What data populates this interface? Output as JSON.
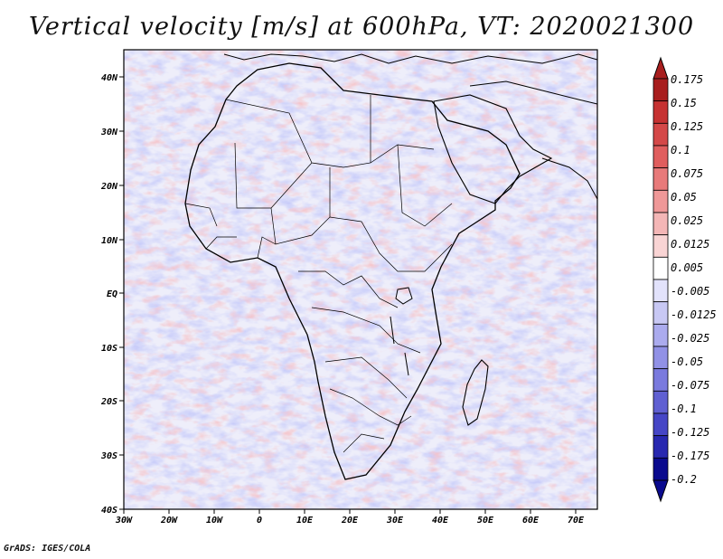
{
  "title": "Vertical velocity [m/s] at 600hPa, VT: 2020021300",
  "footer": "GrADS: IGES/COLA",
  "map": {
    "lon_labels": [
      "30W",
      "20W",
      "10W",
      "0",
      "10E",
      "20E",
      "30E",
      "40E",
      "50E",
      "60E",
      "70E"
    ],
    "lat_labels": [
      "40N",
      "30N",
      "20N",
      "10N",
      "EQ",
      "10S",
      "20S",
      "30S",
      "40S"
    ],
    "lon_range": [
      -30,
      75
    ],
    "lat_range": [
      -40,
      45
    ]
  },
  "colorbar": {
    "labels": [
      "0.175",
      "0.15",
      "0.125",
      "0.1",
      "0.075",
      "0.05",
      "0.025",
      "0.0125",
      "0.005",
      "-0.005",
      "-0.0125",
      "-0.025",
      "-0.05",
      "-0.075",
      "-0.1",
      "-0.125",
      "-0.175",
      "-0.2"
    ],
    "colors": [
      "#a81e1e",
      "#c63232",
      "#d44848",
      "#e05e5e",
      "#e87a7a",
      "#ef9898",
      "#f4b6b6",
      "#f9d4d4",
      "#ffffff",
      "#e2e2fb",
      "#c8c8f4",
      "#ababee",
      "#9191e6",
      "#7a7ade",
      "#6060d2",
      "#4646c6",
      "#2828b0",
      "#0a0a8e"
    ]
  }
}
